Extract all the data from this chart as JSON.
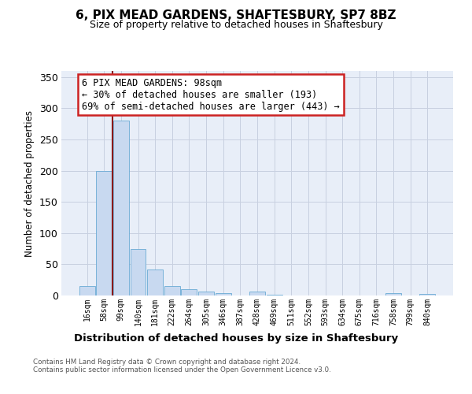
{
  "title": "6, PIX MEAD GARDENS, SHAFTESBURY, SP7 8BZ",
  "subtitle": "Size of property relative to detached houses in Shaftesbury",
  "xlabel": "Distribution of detached houses by size in Shaftesbury",
  "ylabel": "Number of detached properties",
  "bin_labels": [
    "16sqm",
    "58sqm",
    "99sqm",
    "140sqm",
    "181sqm",
    "222sqm",
    "264sqm",
    "305sqm",
    "346sqm",
    "387sqm",
    "428sqm",
    "469sqm",
    "511sqm",
    "552sqm",
    "593sqm",
    "634sqm",
    "675sqm",
    "716sqm",
    "758sqm",
    "799sqm",
    "840sqm"
  ],
  "bar_values": [
    15,
    200,
    280,
    75,
    42,
    15,
    10,
    6,
    4,
    0,
    6,
    1,
    0,
    0,
    0,
    0,
    0,
    0,
    4,
    0,
    2
  ],
  "bar_color": "#c8d9f0",
  "bar_edge_color": "#6aaad4",
  "vline_x": 1.5,
  "vline_color": "#8b1a1a",
  "ylim": [
    0,
    360
  ],
  "yticks": [
    0,
    50,
    100,
    150,
    200,
    250,
    300,
    350
  ],
  "annotation_title": "6 PIX MEAD GARDENS: 98sqm",
  "annotation_line1": "← 30% of detached houses are smaller (193)",
  "annotation_line2": "69% of semi-detached houses are larger (443) →",
  "annotation_box_facecolor": "#ffffff",
  "annotation_box_edgecolor": "#cc2222",
  "footer1": "Contains HM Land Registry data © Crown copyright and database right 2024.",
  "footer2": "Contains public sector information licensed under the Open Government Licence v3.0.",
  "plot_bg_color": "#e8eef8",
  "grid_color": "#c8d0e0",
  "fig_bg_color": "#ffffff"
}
